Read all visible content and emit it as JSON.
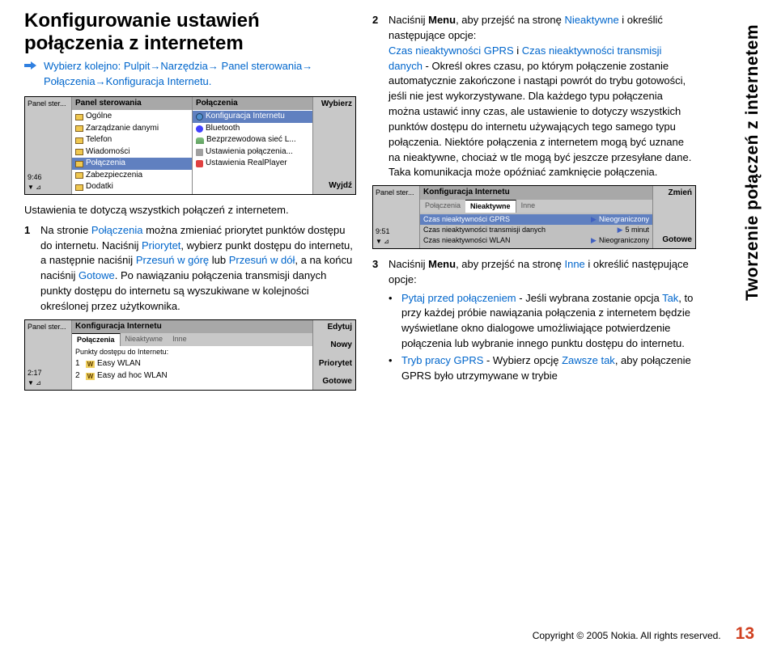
{
  "title": "Konfigurowanie ustawień połączenia z internetem",
  "nav_line": "Wybierz kolejno: Pulpit→Narzędzia→ Panel sterowania→ Połączenia→Konfiguracja Internetu.",
  "shot1": {
    "side_top": "Panel ster...",
    "side_time": "9:46",
    "col1_header": "Panel sterowania",
    "col1_items": [
      "Ogólne",
      "Zarządzanie danymi",
      "Telefon",
      "Wiadomości",
      "Połączenia",
      "Zabezpieczenia",
      "Dodatki"
    ],
    "col2_header": "Połączenia",
    "col2_items": [
      "Konfiguracja Internetu",
      "Bluetooth",
      "Bezprzewodowa sieć L...",
      "Ustawienia połączenia...",
      "Ustawienia RealPlayer"
    ],
    "btn_top": "Wybierz",
    "btn_bot": "Wyjdź"
  },
  "para1": "Ustawienia te dotyczą wszystkich połączeń z internetem.",
  "step1_num": "1",
  "step1_a": "Na stronie ",
  "step1_b": "Połączenia",
  "step1_c": " można zmieniać priorytet punktów dostępu do internetu. Naciśnij ",
  "step1_d": "Priorytet",
  "step1_e": ", wybierz punkt dostępu do internetu, a następnie naciśnij ",
  "step1_f": "Przesuń w górę",
  "step1_g": " lub ",
  "step1_h": "Przesuń w dół",
  "step1_i": ", a na końcu naciśnij ",
  "step1_j": "Gotowe",
  "step1_k": ". Po nawiązaniu połączenia transmisji danych punkty dostępu do internetu są wyszukiwane w kolejności określonej przez użytkownika.",
  "shot2": {
    "side_top": "Panel ster...",
    "side_time": "2:17",
    "header": "Konfiguracja Internetu",
    "tabs": [
      "Połączenia",
      "Nieaktywne",
      "Inne"
    ],
    "sub": "Punkty dostępu do Internetu:",
    "items": [
      {
        "n": "1",
        "name": "Easy WLAN"
      },
      {
        "n": "2",
        "name": "Easy ad hoc WLAN"
      }
    ],
    "btns": [
      "Edytuj",
      "Nowy",
      "Priorytet",
      "Gotowe"
    ]
  },
  "step2_num": "2",
  "step2_a": "Naciśnij ",
  "step2_menu": "Menu",
  "step2_b": ", aby przejść na stronę ",
  "step2_c": "Nieaktywne",
  "step2_d": " i określić następujące opcje:",
  "step2_e1": "Czas nieaktywności GPRS",
  "step2_e2": " i ",
  "step2_e3": "Czas nieaktywności transmisji danych",
  "step2_f": " - Określ okres czasu, po którym połączenie zostanie automatycznie zakończone i nastąpi powrót do trybu gotowości, jeśli nie jest wykorzystywane. Dla każdego typu połączenia można ustawić inny czas, ale ustawienie to dotyczy wszystkich punktów dostępu do internetu używających tego samego typu połączenia. Niektóre połączenia z internetem mogą być uznane na nieaktywne, chociaż w tle mogą być jeszcze przesyłane dane. Taka komunikacja może opóźniać zamknięcie połączenia.",
  "shot3": {
    "side_top": "Panel ster...",
    "side_time": "9:51",
    "header": "Konfiguracja Internetu",
    "tabs": [
      "Połączenia",
      "Nieaktywne",
      "Inne"
    ],
    "rows": [
      {
        "l": "Czas nieaktywności GPRS",
        "r": "Nieograniczony"
      },
      {
        "l": "Czas nieaktywności transmisji danych",
        "r": "5 minut"
      },
      {
        "l": "Czas nieaktywności WLAN",
        "r": "Nieograniczony"
      }
    ],
    "btn_top": "Zmień",
    "btn_bot": "Gotowe"
  },
  "step3_num": "3",
  "step3_a": "Naciśnij ",
  "step3_menu": "Menu",
  "step3_b": ", aby przejść na stronę ",
  "step3_c": "Inne",
  "step3_d": " i określić następujące opcje:",
  "bul1_a": "Pytaj przed połączeniem",
  "bul1_b": " - Jeśli wybrana zostanie opcja ",
  "bul1_c": "Tak",
  "bul1_d": ", to przy każdej próbie nawiązania połączenia z internetem będzie wyświetlane okno dialogowe umożliwiające potwierdzenie połączenia lub wybranie innego punktu dostępu do internetu.",
  "bul2_a": "Tryb pracy GPRS",
  "bul2_b": " - Wybierz opcję ",
  "bul2_c": "Zawsze tak",
  "bul2_d": ", aby połączenie GPRS było utrzymywane w trybie",
  "sidebar": "Tworzenie połączeń z internetem",
  "footer_text": "Copyright © 2005 Nokia. All rights reserved.",
  "page_number": "13"
}
